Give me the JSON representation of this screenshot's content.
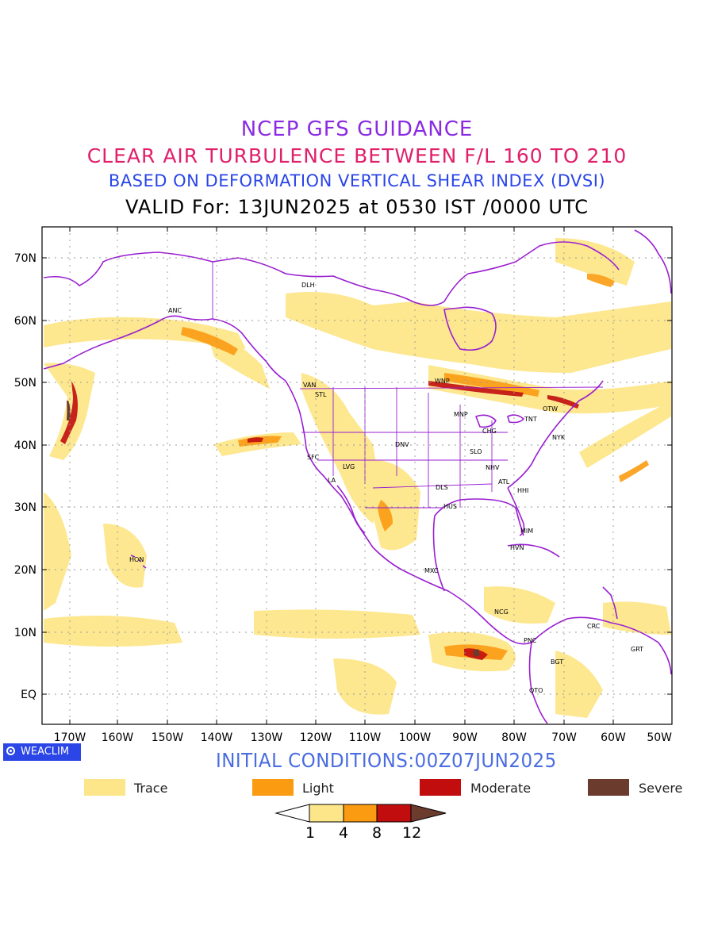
{
  "header": {
    "line1": "NCEP GFS GUIDANCE",
    "line2": "CLEAR AIR TURBULENCE BETWEEN F/L 160 TO 210",
    "line3": "BASED ON DEFORMATION VERTICAL SHEAR INDEX (DVSI)",
    "line4": "VALID For: 13JUN2025 at 0530 IST /0000 UTC"
  },
  "colors": {
    "line1": "#8a2be2",
    "line2": "#e0206a",
    "line3": "#2a45e8",
    "line4": "#000000",
    "trace": "#fde68a",
    "light": "#fb9b12",
    "moderate": "#c10d0d",
    "severe": "#6b3b2e",
    "coast": "#9a1fd1"
  },
  "map": {
    "lat_ticks": [
      "70N",
      "60N",
      "50N",
      "40N",
      "30N",
      "20N",
      "10N",
      "EQ"
    ],
    "lon_ticks": [
      "170W",
      "160W",
      "150W",
      "140W",
      "130W",
      "120W",
      "110W",
      "100W",
      "90W",
      "80W",
      "70W",
      "60W",
      "50W"
    ],
    "stations": [
      "ANC",
      "DLH",
      "VAN",
      "STL",
      "WNP",
      "OTW",
      "MNP",
      "TNT",
      "NYK",
      "CHG",
      "DNV",
      "SFC",
      "LVG",
      "LA",
      "SLO",
      "NHV",
      "ATL",
      "DLS",
      "HHI",
      "HUS",
      "MIM",
      "HVN",
      "MXC",
      "HON",
      "NCG",
      "PNC",
      "CRC",
      "GRT",
      "BGT",
      "QTO"
    ]
  },
  "footer": {
    "brand": "WEACLIM",
    "initial_conditions": "INITIAL CONDITIONS:00Z07JUN2025"
  },
  "legend": {
    "items": [
      {
        "label": "Trace",
        "color": "#fde68a"
      },
      {
        "label": "Light",
        "color": "#fb9b12"
      },
      {
        "label": "Moderate",
        "color": "#c10d0d"
      },
      {
        "label": "Severe",
        "color": "#6b3b2e"
      }
    ],
    "colorbar_ticks": [
      "1",
      "4",
      "8",
      "12"
    ]
  }
}
